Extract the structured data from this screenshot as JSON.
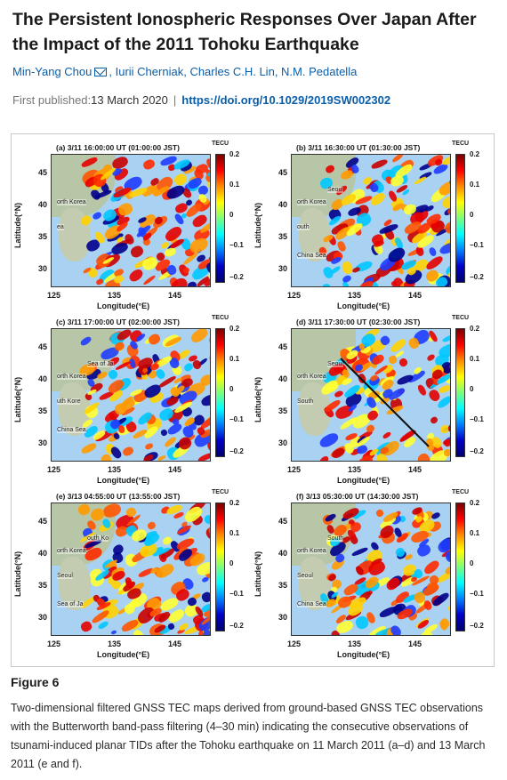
{
  "article": {
    "title": "The Persistent Ionospheric Responses Over Japan After the Impact of the 2011 Tohoku Earthquake",
    "authors": [
      "Min-Yang Chou",
      "Iurii Cherniak",
      "Charles C.H. Lin",
      "N.M. Pedatella"
    ],
    "first_published_label": "First published:",
    "first_published_date": "13 March 2020",
    "separator": "|",
    "doi": "https://doi.org/10.1029/2019SW002302",
    "mail_icon": "envelope-icon"
  },
  "figure": {
    "label": "Figure 6",
    "caption": "Two-dimensional filtered GNSS TEC maps derived from ground-based GNSS TEC observations with the Butterworth band-pass filtering (4–30 min) indicating the consecutive observations of tsunami-induced planar TIDs after the Tohoku earthquake on 11 March 2011 (a–d) and 13 March 2011 (e and f).",
    "panels": [
      {
        "title": "(a) 3/11 16:00:00 UT (01:00:00 JST)",
        "labels": [
          "orth Korea",
          "ea"
        ]
      },
      {
        "title": "(b) 3/11 16:30:00 UT (01:30:00 JST)",
        "labels": [
          "orth Korea",
          "outh",
          "Seoul",
          "China Sea"
        ]
      },
      {
        "title": "(c) 3/11 17:00:00 UT (02:00:00 JST)",
        "labels": [
          "orth Korea",
          "uth Kore",
          "Sea of Ja",
          "China Sea"
        ]
      },
      {
        "title": "(d) 3/11 17:30:00 UT (02:30:00 JST)",
        "labels": [
          "orth Korea",
          "South",
          "Seoul"
        ]
      },
      {
        "title": "(e) 3/13 04:55:00 UT (13:55:00 JST)",
        "labels": [
          "orth Korea",
          "Seoul",
          "outh Ko",
          "Sea of Ja"
        ]
      },
      {
        "title": "(f) 3/13 05:30:00 UT (14:30:00 JST)",
        "labels": [
          "orth Korea",
          "Seoul",
          "South",
          "China Sea"
        ]
      }
    ],
    "axes": {
      "ylabel": "Latitude(°N)",
      "xlabel": "Longitude(°E)",
      "yticks": [
        "45",
        "40",
        "35",
        "30"
      ],
      "xticks": [
        "125",
        "135",
        "145"
      ],
      "colorbar_label": "TECU",
      "colorbar_ticks": [
        "0.2",
        "0.1",
        "0",
        "−0.1",
        "−0.2"
      ]
    }
  }
}
